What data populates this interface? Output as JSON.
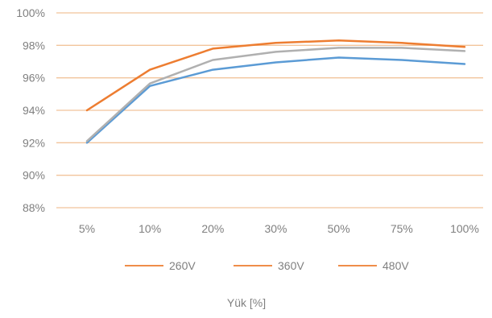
{
  "chart_data": {
    "type": "line",
    "categories": [
      "5%",
      "10%",
      "20%",
      "30%",
      "50%",
      "75%",
      "100%"
    ],
    "series": [
      {
        "name": "260V",
        "color": "#5b9bd5",
        "values": [
          92.0,
          95.5,
          96.5,
          96.95,
          97.25,
          97.1,
          96.85
        ]
      },
      {
        "name": "360V",
        "color": "#b0b0b0",
        "values": [
          92.1,
          95.65,
          97.1,
          97.6,
          97.85,
          97.85,
          97.65
        ]
      },
      {
        "name": "480V",
        "color": "#ed7d31",
        "values": [
          94.0,
          96.5,
          97.8,
          98.15,
          98.3,
          98.15,
          97.9
        ]
      }
    ],
    "y_ticks": [
      "88%",
      "90%",
      "92%",
      "94%",
      "96%",
      "98%",
      "100%"
    ],
    "ylim": [
      88,
      100
    ],
    "xlabel": "Yük [%]",
    "ylabel": "",
    "title": "",
    "grid": true,
    "grid_color": "#f2c49b",
    "tick_color": "#808080",
    "legend_position": "bottom"
  }
}
